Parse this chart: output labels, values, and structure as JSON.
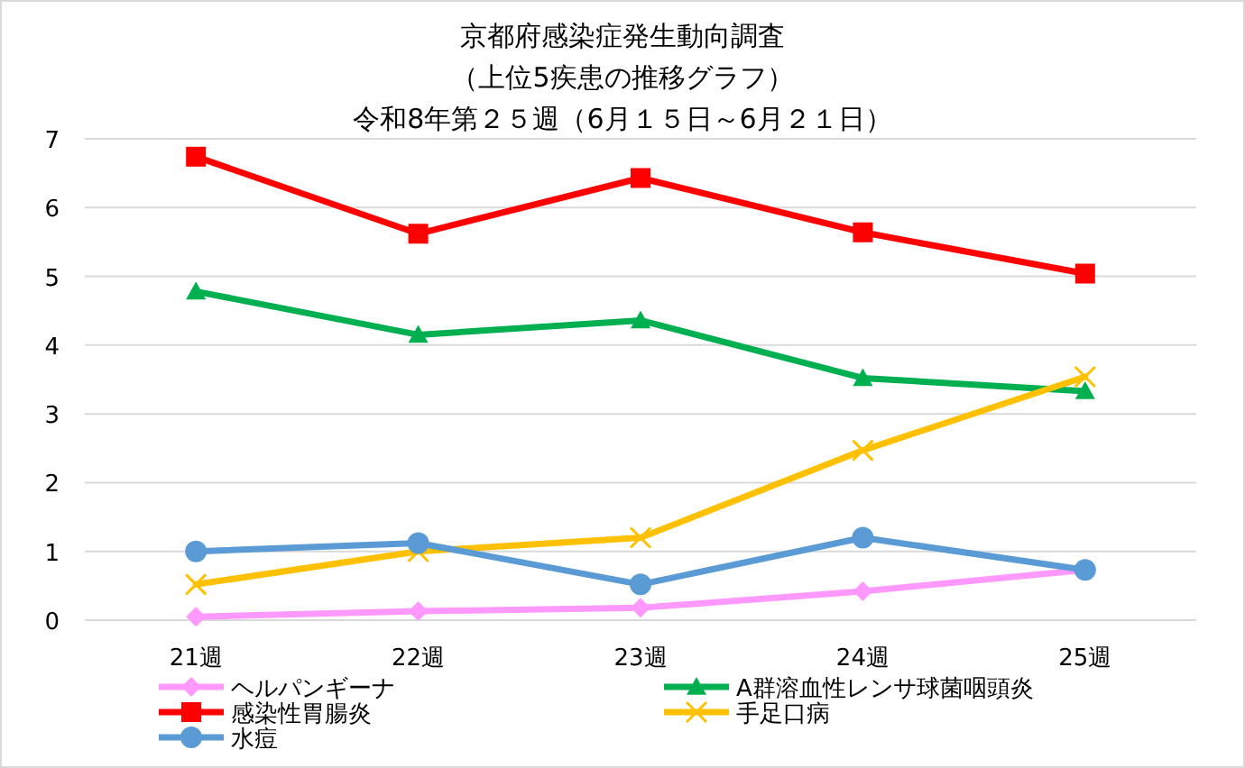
{
  "chart_data": {
    "type": "line",
    "title": "京都府感染症発生動向調査",
    "subtitle": "（上位5疾患の推移グラフ）",
    "annotations": [
      "令和8年第２５週（6月１５日～6月２１日）"
    ],
    "categories": [
      "21週",
      "22週",
      "23週",
      "24週",
      "25週"
    ],
    "series": [
      {
        "name": "ヘルパンギーナ",
        "color": "#ff99ff",
        "marker": "diamond",
        "values": [
          0.05,
          0.13,
          0.18,
          0.42,
          0.73
        ]
      },
      {
        "name": "A群溶血性レンサ球菌咽頭炎",
        "color": "#00b050",
        "marker": "triangle",
        "values": [
          4.78,
          4.15,
          4.36,
          3.52,
          3.33
        ]
      },
      {
        "name": "感染性胃腸炎",
        "color": "#ff0000",
        "marker": "square",
        "values": [
          6.74,
          5.62,
          6.43,
          5.64,
          5.04
        ]
      },
      {
        "name": "手足口病",
        "color": "#ffc000",
        "marker": "cross",
        "values": [
          0.52,
          1.0,
          1.2,
          2.47,
          3.54
        ]
      },
      {
        "name": "水痘",
        "color": "#5b9bd5",
        "marker": "circle",
        "values": [
          1.0,
          1.12,
          0.52,
          1.2,
          0.73
        ]
      }
    ],
    "ylim": [
      0,
      7
    ],
    "yticks": [
      0,
      1,
      2,
      3,
      4,
      5,
      6,
      7
    ],
    "grid": "y",
    "legend": "bottom",
    "line_style": "solid"
  }
}
